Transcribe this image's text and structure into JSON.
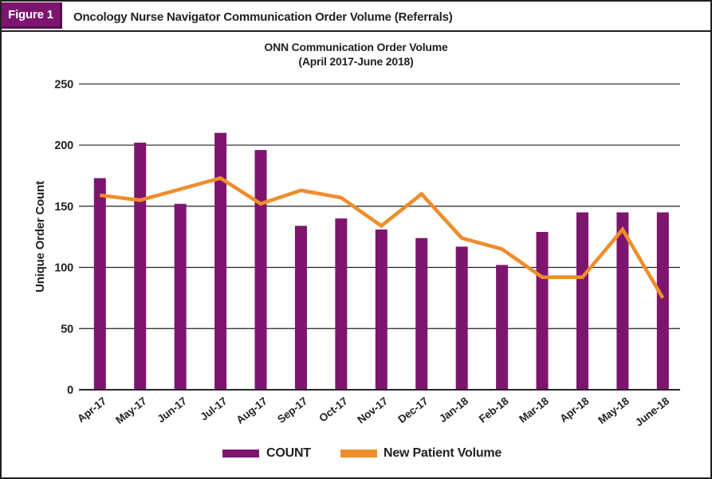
{
  "header": {
    "label": "Figure 1",
    "title": "Oncology Nurse Navigator Communication Order Volume (Referrals)"
  },
  "colors": {
    "bar_purple": "#7D156E",
    "badge_shadow": "#560E4E",
    "line_orange": "#EF8D2C",
    "text": "#231F20",
    "border": "#231F20"
  },
  "chart_data": {
    "type": "combo-bar-line",
    "title": "ONN Communication Order Volume",
    "subtitle": "(April 2017-June 2018)",
    "ylabel": "Unique Order Count",
    "xlabel": "",
    "categories": [
      "Apr-17",
      "May-17",
      "Jun-17",
      "Jul-17",
      "Aug-17",
      "Sep-17",
      "Oct-17",
      "Nov-17",
      "Dec-17",
      "Jan-18",
      "Feb-18",
      "Mar-18",
      "Apr-18",
      "May-18",
      "June-18"
    ],
    "series": [
      {
        "name": "COUNT",
        "type": "bar",
        "color": "#7D156E",
        "values": [
          173,
          202,
          152,
          210,
          196,
          134,
          140,
          131,
          124,
          117,
          102,
          129,
          145,
          145,
          145
        ]
      },
      {
        "name": "New Patient Volume",
        "type": "line",
        "color": "#EF8D2C",
        "values": [
          159,
          155,
          164,
          173,
          152,
          163,
          157,
          134,
          160,
          124,
          115,
          92,
          92,
          131,
          75
        ]
      }
    ],
    "ylim": [
      0,
      250
    ],
    "yticks": [
      0,
      50,
      100,
      150,
      200,
      250
    ],
    "grid": true,
    "legend_position": "bottom"
  }
}
